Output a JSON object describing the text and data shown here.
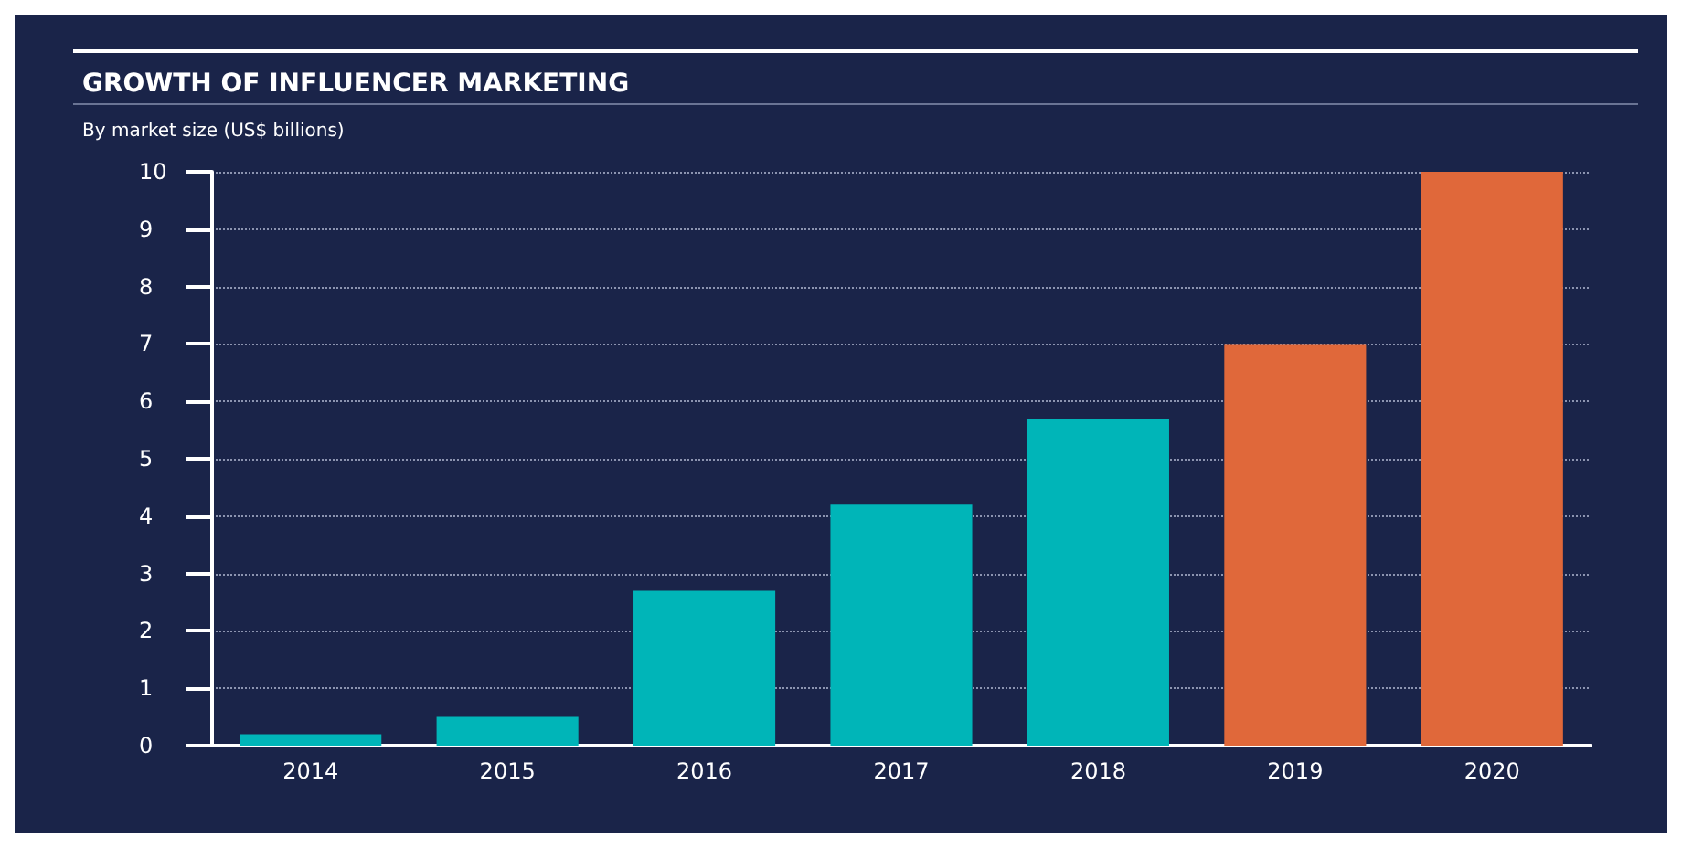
{
  "chart_data": {
    "type": "bar",
    "title": "GROWTH OF INFLUENCER MARKETING",
    "subtitle": "By market size (US$ billions)",
    "categories": [
      "2014",
      "2015",
      "2016",
      "2017",
      "2018",
      "2019",
      "2020"
    ],
    "values": [
      0.2,
      0.5,
      2.7,
      4.2,
      5.7,
      7.0,
      10
    ],
    "colors": [
      "#00b5b8",
      "#00b5b8",
      "#00b5b8",
      "#00b5b8",
      "#00b5b8",
      "#e0683a",
      "#e0683a"
    ],
    "ylim": [
      0,
      10
    ],
    "yticks": [
      0,
      1,
      2,
      3,
      4,
      5,
      6,
      7,
      8,
      9,
      10
    ],
    "grid": "y"
  }
}
